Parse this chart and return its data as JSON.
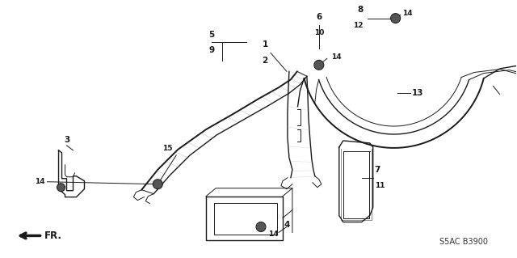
{
  "bg_color": "#ffffff",
  "line_color": "#1a1a1a",
  "fig_width": 6.4,
  "fig_height": 3.19,
  "dpi": 100,
  "watermark": "S5AC B3900"
}
